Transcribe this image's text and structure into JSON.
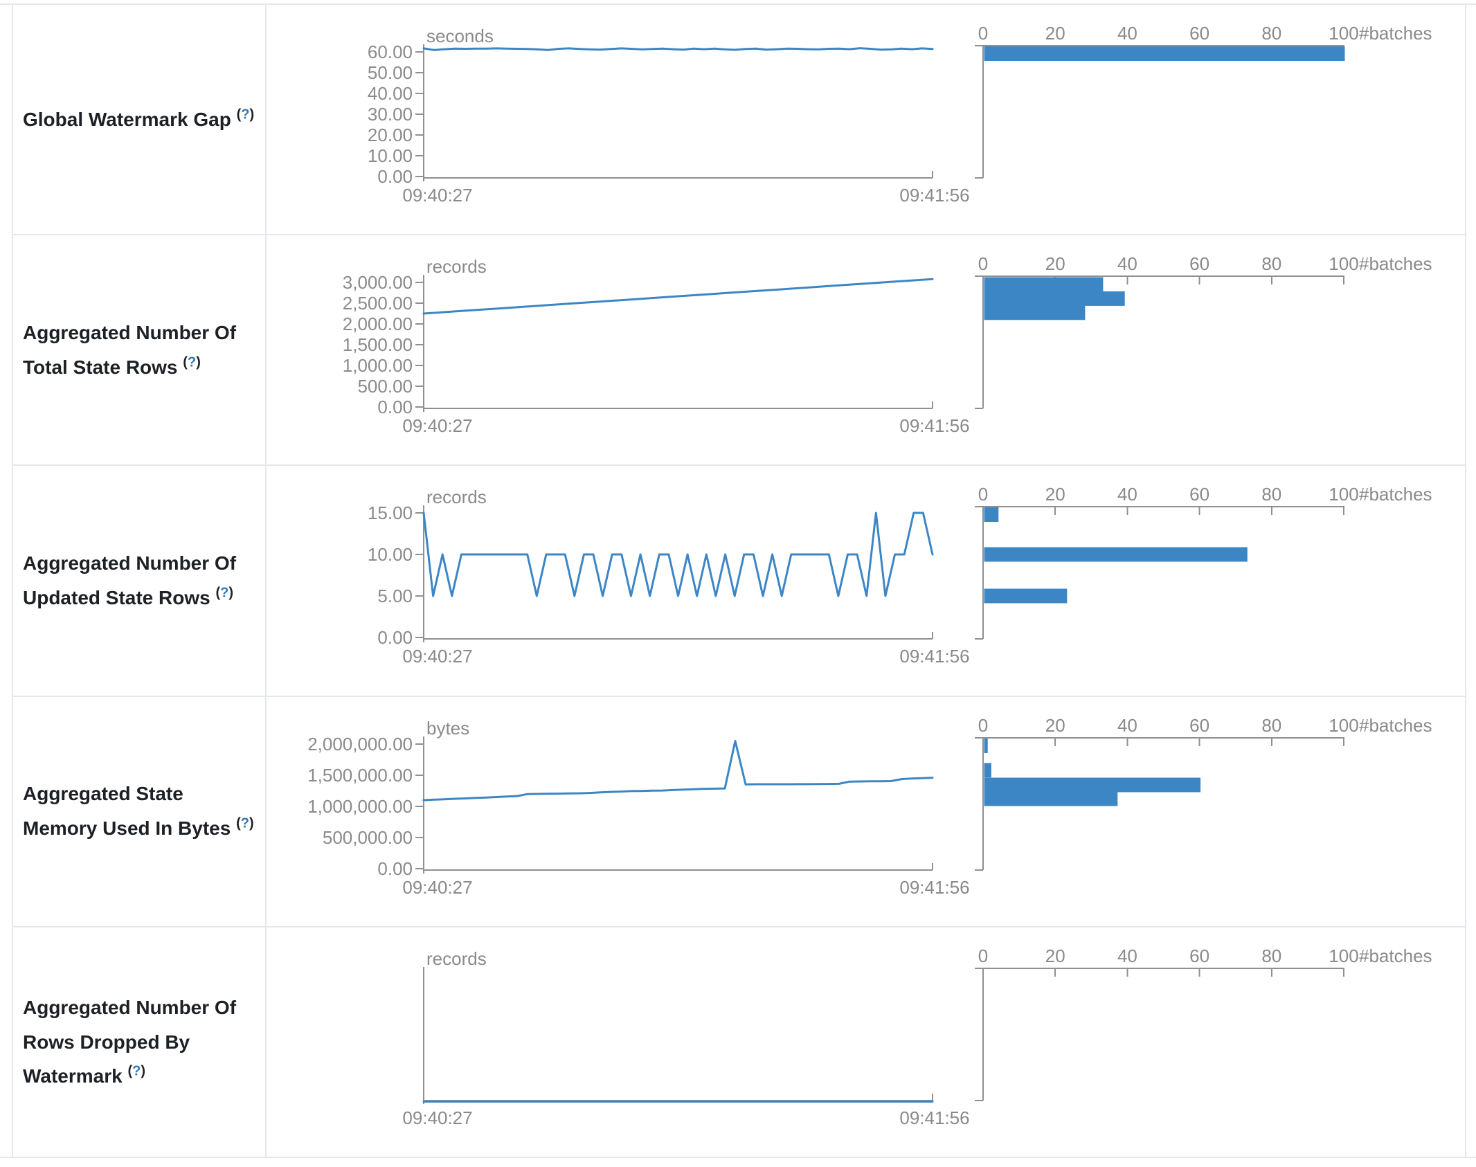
{
  "colors": {
    "accent_blue": "#3d86c6",
    "axis_gray": "#909090",
    "axis_text_gray": "#8a8a8a",
    "label_text": "#1d2125",
    "help_link_blue": "#3178b5",
    "border_gray": "#e4e7eb"
  },
  "help": {
    "open": "(",
    "question": "?",
    "close": ")"
  },
  "x_axis": {
    "start_label": "09:40:27",
    "end_label": "09:41:56"
  },
  "histogram_axis": {
    "tick_labels": [
      "0",
      "20",
      "40",
      "60",
      "80",
      "100"
    ],
    "tick_values": [
      0,
      20,
      40,
      60,
      80,
      100
    ],
    "max": 100,
    "unit_label": "#batches"
  },
  "chart_data": [
    {
      "id": "global-watermark-gap",
      "metric_label": "Global Watermark Gap",
      "type": "line+histogram",
      "timeline": {
        "unit": "seconds",
        "y_max": 60,
        "y_ticks": [
          {
            "v": 60,
            "label": "60.00"
          },
          {
            "v": 50,
            "label": "50.00"
          },
          {
            "v": 40,
            "label": "40.00"
          },
          {
            "v": 30,
            "label": "30.00"
          },
          {
            "v": 20,
            "label": "20.00"
          },
          {
            "v": 10,
            "label": "10.00"
          },
          {
            "v": 0,
            "label": "0.00"
          }
        ],
        "values": [
          61.7,
          60.9,
          61.3,
          61.6,
          61.5,
          61.6,
          61.6,
          61.7,
          61.6,
          61.5,
          61.4,
          61.2,
          60.9,
          61.5,
          61.7,
          61.4,
          61.2,
          61.1,
          61.4,
          61.7,
          61.5,
          61.2,
          61.4,
          61.6,
          61.3,
          61.1,
          61.6,
          61.3,
          61.6,
          61.2,
          61.0,
          61.4,
          61.6,
          61.1,
          61.3,
          61.6,
          61.5,
          61.3,
          61.2,
          61.5,
          61.6,
          61.3,
          61.8,
          61.5,
          61.1,
          61.2,
          61.6,
          61.3,
          61.7,
          61.4
        ]
      },
      "histogram": {
        "bars": [
          {
            "value": 61,
            "count": 100
          }
        ]
      }
    },
    {
      "id": "aggregated-number-of-total-state-rows",
      "metric_label": "Aggregated Number Of Total State Rows",
      "type": "line+histogram",
      "timeline": {
        "unit": "records",
        "y_max": 3000,
        "y_ticks": [
          {
            "v": 3000,
            "label": "3,000.00"
          },
          {
            "v": 2500,
            "label": "2,500.00"
          },
          {
            "v": 2000,
            "label": "2,000.00"
          },
          {
            "v": 1500,
            "label": "1,500.00"
          },
          {
            "v": 1000,
            "label": "1,000.00"
          },
          {
            "v": 500,
            "label": "500.00"
          },
          {
            "v": 0,
            "label": "0.00"
          }
        ],
        "values": [
          2250,
          2285,
          2320,
          2354,
          2389,
          2424,
          2458,
          2493,
          2527,
          2562,
          2597,
          2631,
          2666,
          2700,
          2735,
          2770,
          2804,
          2839,
          2873,
          2908,
          2943,
          2977,
          3012,
          3046,
          3080
        ]
      },
      "histogram": {
        "bars": [
          {
            "value": 2950,
            "count": 33
          },
          {
            "value": 2610,
            "count": 39
          },
          {
            "value": 2270,
            "count": 28
          }
        ]
      }
    },
    {
      "id": "aggregated-number-of-updated-state-rows",
      "metric_label": "Aggregated Number Of Updated State Rows",
      "type": "line+histogram",
      "timeline": {
        "unit": "records",
        "y_max": 15,
        "y_ticks": [
          {
            "v": 15,
            "label": "15.00"
          },
          {
            "v": 10,
            "label": "10.00"
          },
          {
            "v": 5,
            "label": "5.00"
          },
          {
            "v": 0,
            "label": "0.00"
          }
        ],
        "values": [
          15,
          5,
          10,
          5,
          10,
          10,
          10,
          10,
          10,
          10,
          10,
          10,
          5,
          10,
          10,
          10,
          5,
          10,
          10,
          5,
          10,
          10,
          5,
          10,
          5,
          10,
          10,
          5,
          10,
          5,
          10,
          5,
          10,
          5,
          10,
          10,
          5,
          10,
          5,
          10,
          10,
          10,
          10,
          10,
          5,
          10,
          10,
          5,
          15,
          5,
          10,
          10,
          15,
          15,
          10
        ]
      },
      "histogram": {
        "bars": [
          {
            "value": 15,
            "count": 4
          },
          {
            "value": 10,
            "count": 73
          },
          {
            "value": 5,
            "count": 23
          }
        ]
      }
    },
    {
      "id": "aggregated-state-memory-used-in-bytes",
      "metric_label": "Aggregated State Memory Used In Bytes",
      "type": "line+histogram",
      "timeline": {
        "unit": "bytes",
        "y_max": 2000000,
        "y_ticks": [
          {
            "v": 2000000,
            "label": "2,000,000.00"
          },
          {
            "v": 1500000,
            "label": "1,500,000.00"
          },
          {
            "v": 1000000,
            "label": "1,000,000.00"
          },
          {
            "v": 500000,
            "label": "500,000.00"
          },
          {
            "v": 0,
            "label": "0.00"
          }
        ],
        "values": [
          1100000,
          1108000,
          1115000,
          1122000,
          1128000,
          1135000,
          1142000,
          1150000,
          1158000,
          1165000,
          1198000,
          1200000,
          1202000,
          1205000,
          1208000,
          1210000,
          1215000,
          1225000,
          1232000,
          1238000,
          1245000,
          1248000,
          1252000,
          1255000,
          1262000,
          1270000,
          1275000,
          1282000,
          1285000,
          1288000,
          2050000,
          1352000,
          1355000,
          1355000,
          1356000,
          1356000,
          1357000,
          1357000,
          1358000,
          1360000,
          1362000,
          1398000,
          1400000,
          1402000,
          1403000,
          1405000,
          1438000,
          1448000,
          1452000,
          1460000
        ]
      },
      "histogram": {
        "bars": [
          {
            "value": 2000000,
            "count": 1
          },
          {
            "value": 1580000,
            "count": 2
          },
          {
            "value": 1344000,
            "count": 60
          },
          {
            "value": 1122000,
            "count": 37
          }
        ]
      }
    },
    {
      "id": "aggregated-number-of-rows-dropped-by-watermark",
      "metric_label": "Aggregated Number Of Rows Dropped By Watermark",
      "type": "line+histogram",
      "timeline": {
        "unit": "records",
        "y_max": null,
        "y_ticks": [],
        "values": [
          0,
          0,
          0,
          0,
          0,
          0,
          0,
          0,
          0,
          0,
          0,
          0
        ]
      },
      "histogram": {
        "bars": []
      }
    }
  ]
}
